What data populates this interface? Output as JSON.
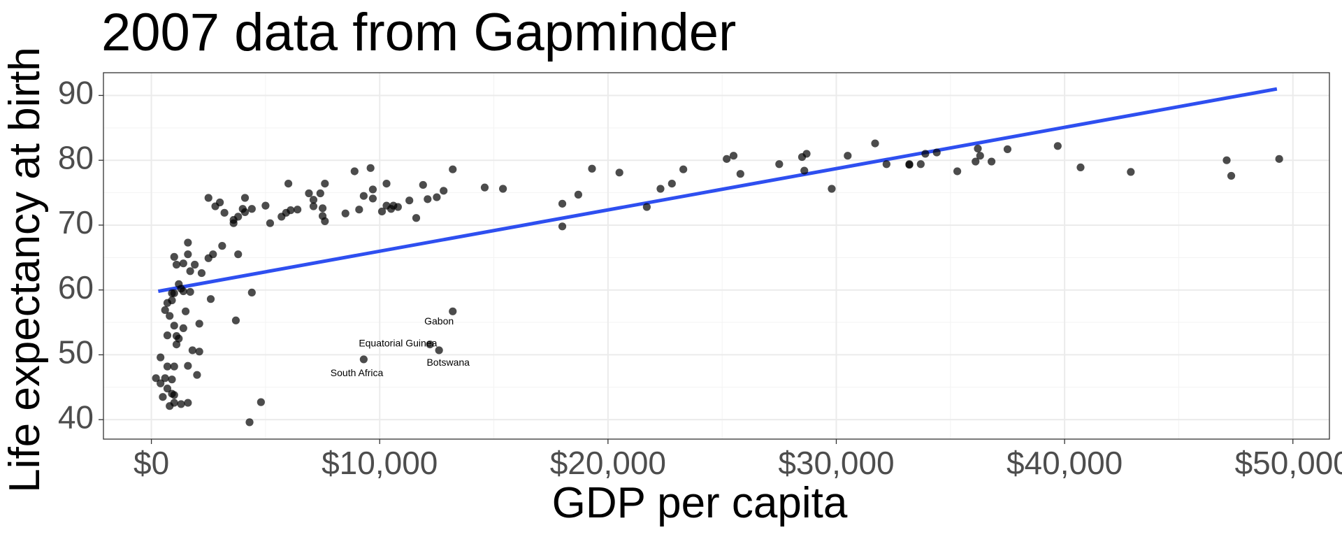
{
  "chart_data": {
    "type": "scatter",
    "title": "2007 data from Gapminder",
    "xlabel": "GDP per capita",
    "ylabel": "Life expectancy at birth",
    "xlim": [
      -2100,
      51600
    ],
    "ylim": [
      37,
      93.5
    ],
    "x_ticks": [
      0,
      10000,
      20000,
      30000,
      40000,
      50000
    ],
    "x_tick_labels": [
      "$0",
      "$10,000",
      "$20,000",
      "$30,000",
      "$40,000",
      "$50,000"
    ],
    "y_ticks": [
      40,
      50,
      60,
      70,
      80,
      90
    ],
    "y_tick_labels": [
      "40",
      "50",
      "60",
      "70",
      "80",
      "90"
    ],
    "grid": true,
    "legend": "none",
    "point_color": "#000000",
    "trend_color": "#2e4ff0",
    "trend_line": {
      "x": [
        300,
        49300
      ],
      "y": [
        59.8,
        91.0
      ]
    },
    "points": [
      [
        4300,
        39.6
      ],
      [
        4800,
        42.7
      ],
      [
        1300,
        42.4
      ],
      [
        1600,
        42.6
      ],
      [
        800,
        42.1
      ],
      [
        1000,
        42.6
      ],
      [
        500,
        43.5
      ],
      [
        1000,
        43.8
      ],
      [
        900,
        44.0
      ],
      [
        700,
        44.8
      ],
      [
        200,
        46.4
      ],
      [
        400,
        45.6
      ],
      [
        600,
        46.4
      ],
      [
        900,
        46.2
      ],
      [
        2000,
        46.9
      ],
      [
        700,
        48.2
      ],
      [
        1000,
        48.2
      ],
      [
        1600,
        48.3
      ],
      [
        400,
        49.6
      ],
      [
        1800,
        50.7
      ],
      [
        2100,
        50.5
      ],
      [
        1100,
        51.6
      ],
      [
        1200,
        52.5
      ],
      [
        1100,
        52.9
      ],
      [
        700,
        53.0
      ],
      [
        1400,
        54.1
      ],
      [
        1000,
        54.5
      ],
      [
        2100,
        54.8
      ],
      [
        3700,
        55.3
      ],
      [
        800,
        56.0
      ],
      [
        1500,
        56.7
      ],
      [
        600,
        56.9
      ],
      [
        700,
        58.0
      ],
      [
        900,
        58.4
      ],
      [
        2600,
        58.6
      ],
      [
        1000,
        59.5
      ],
      [
        900,
        59.5
      ],
      [
        1400,
        59.8
      ],
      [
        1700,
        59.7
      ],
      [
        4400,
        59.6
      ],
      [
        1200,
        60.9
      ],
      [
        1300,
        60.2
      ],
      [
        1700,
        62.9
      ],
      [
        1900,
        63.9
      ],
      [
        1100,
        63.9
      ],
      [
        2200,
        62.6
      ],
      [
        1400,
        64.1
      ],
      [
        2500,
        64.9
      ],
      [
        1000,
        65.1
      ],
      [
        1600,
        65.5
      ],
      [
        2700,
        65.5
      ],
      [
        3800,
        65.5
      ],
      [
        3100,
        66.8
      ],
      [
        1600,
        67.3
      ],
      [
        4400,
        72.5
      ],
      [
        4100,
        72.0
      ],
      [
        3800,
        71.3
      ],
      [
        3600,
        70.3
      ],
      [
        3600,
        70.8
      ],
      [
        4000,
        72.5
      ],
      [
        2800,
        72.9
      ],
      [
        3200,
        71.9
      ],
      [
        2500,
        74.2
      ],
      [
        3000,
        73.5
      ],
      [
        4100,
        74.2
      ],
      [
        5000,
        73.0
      ],
      [
        5200,
        70.3
      ],
      [
        5700,
        71.3
      ],
      [
        5900,
        71.9
      ],
      [
        6100,
        72.3
      ],
      [
        6400,
        72.4
      ],
      [
        6000,
        76.4
      ],
      [
        6900,
        74.9
      ],
      [
        7100,
        72.9
      ],
      [
        7100,
        73.9
      ],
      [
        7500,
        72.6
      ],
      [
        7400,
        74.9
      ],
      [
        7600,
        76.4
      ],
      [
        7500,
        71.4
      ],
      [
        7600,
        70.6
      ],
      [
        8500,
        71.8
      ],
      [
        8900,
        78.3
      ],
      [
        9100,
        72.4
      ],
      [
        9300,
        74.5
      ],
      [
        9600,
        78.8
      ],
      [
        9700,
        75.5
      ],
      [
        9700,
        74.1
      ],
      [
        10100,
        72.1
      ],
      [
        10300,
        73.0
      ],
      [
        10500,
        72.5
      ],
      [
        10600,
        73.0
      ],
      [
        10300,
        76.4
      ],
      [
        10800,
        72.8
      ],
      [
        11300,
        73.8
      ],
      [
        11600,
        71.1
      ],
      [
        11900,
        76.2
      ],
      [
        12100,
        74.0
      ],
      [
        12500,
        74.3
      ],
      [
        12800,
        75.3
      ],
      [
        13200,
        78.6
      ],
      [
        14600,
        75.8
      ],
      [
        15400,
        75.6
      ],
      [
        13200,
        56.7
      ],
      [
        12200,
        51.6
      ],
      [
        12600,
        50.7
      ],
      [
        9300,
        49.3
      ],
      [
        18000,
        69.8
      ],
      [
        18000,
        73.3
      ],
      [
        18700,
        74.7
      ],
      [
        19300,
        78.7
      ],
      [
        20500,
        78.1
      ],
      [
        21700,
        72.8
      ],
      [
        22300,
        75.6
      ],
      [
        22800,
        76.4
      ],
      [
        23300,
        78.6
      ],
      [
        25200,
        80.2
      ],
      [
        25500,
        80.7
      ],
      [
        25800,
        77.9
      ],
      [
        27500,
        79.4
      ],
      [
        28500,
        80.5
      ],
      [
        28700,
        81.0
      ],
      [
        28600,
        78.4
      ],
      [
        29800,
        75.6
      ],
      [
        30500,
        80.7
      ],
      [
        31700,
        82.6
      ],
      [
        32200,
        79.4
      ],
      [
        33200,
        79.3
      ],
      [
        33200,
        79.4
      ],
      [
        33700,
        79.4
      ],
      [
        33900,
        81.0
      ],
      [
        34400,
        81.2
      ],
      [
        35300,
        78.3
      ],
      [
        36100,
        79.8
      ],
      [
        36200,
        81.8
      ],
      [
        36300,
        80.7
      ],
      [
        36800,
        79.8
      ],
      [
        37500,
        81.7
      ],
      [
        39700,
        82.2
      ],
      [
        40700,
        78.9
      ],
      [
        42900,
        78.2
      ],
      [
        47100,
        80.0
      ],
      [
        47300,
        77.6
      ],
      [
        49400,
        80.2
      ]
    ],
    "annotations": [
      {
        "text": "Gabon",
        "x": 12600,
        "y": 55.1
      },
      {
        "text": "Equatorial Guinea",
        "x": 10800,
        "y": 51.7
      },
      {
        "text": "Botswana",
        "x": 13000,
        "y": 48.7
      },
      {
        "text": "South Africa",
        "x": 9000,
        "y": 47.1
      }
    ]
  }
}
